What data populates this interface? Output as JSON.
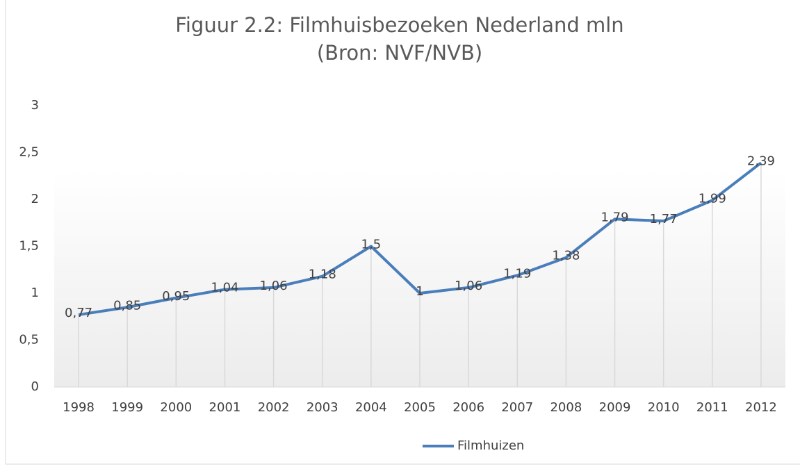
{
  "chart_data": {
    "type": "line",
    "title": "Figuur 2.2: Filmhuisbezoeken Nederland mln (Bron: NVF/NVB)",
    "categories": [
      "1998",
      "1999",
      "2000",
      "2001",
      "2002",
      "2003",
      "2004",
      "2005",
      "2006",
      "2007",
      "2008",
      "2009",
      "2010",
      "2011",
      "2012"
    ],
    "series": [
      {
        "name": "Filmhuizen",
        "color": "#4a7ebb",
        "values": [
          0.77,
          0.85,
          0.95,
          1.04,
          1.06,
          1.18,
          1.5,
          1,
          1.06,
          1.19,
          1.38,
          1.79,
          1.77,
          1.99,
          2.39
        ],
        "value_labels": [
          "0,77",
          "0,85",
          "0,95",
          "1,04",
          "1,06",
          "1,18",
          "1,5",
          "1",
          "1,06",
          "1,19",
          "1,38",
          "1,79",
          "1,77",
          "1,99",
          "2,39"
        ]
      }
    ],
    "ylim": [
      0,
      3
    ],
    "yticks": [
      0,
      {
        "value": 0.5,
        "label": "0,5"
      },
      1,
      {
        "value": 1.5,
        "label": "1,5"
      },
      2,
      {
        "value": 2.5,
        "label": "2,5"
      },
      3
    ],
    "drop_lines": true,
    "legend": "bottom"
  }
}
